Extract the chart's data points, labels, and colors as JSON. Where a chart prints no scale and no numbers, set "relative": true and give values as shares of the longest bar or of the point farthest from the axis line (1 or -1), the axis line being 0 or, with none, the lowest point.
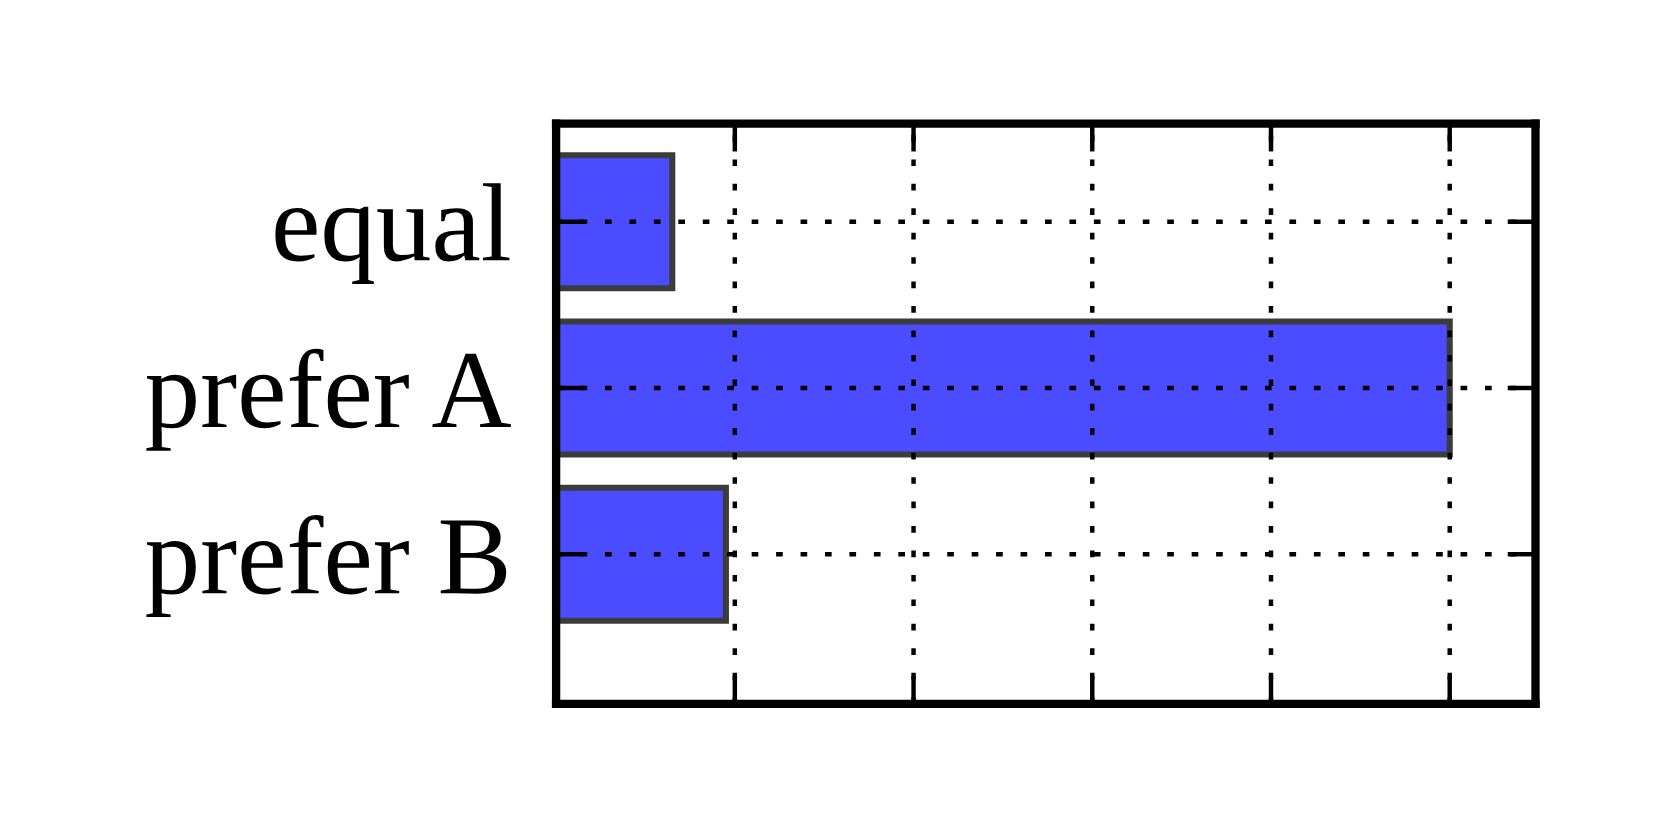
{
  "chart_data": {
    "type": "bar",
    "orientation": "horizontal",
    "relative": true,
    "categories": [
      "equal",
      "prefer A",
      "prefer B"
    ],
    "values": [
      0.13,
      1,
      0.19
    ],
    "color": "#4b4bff",
    "grid": true
  }
}
